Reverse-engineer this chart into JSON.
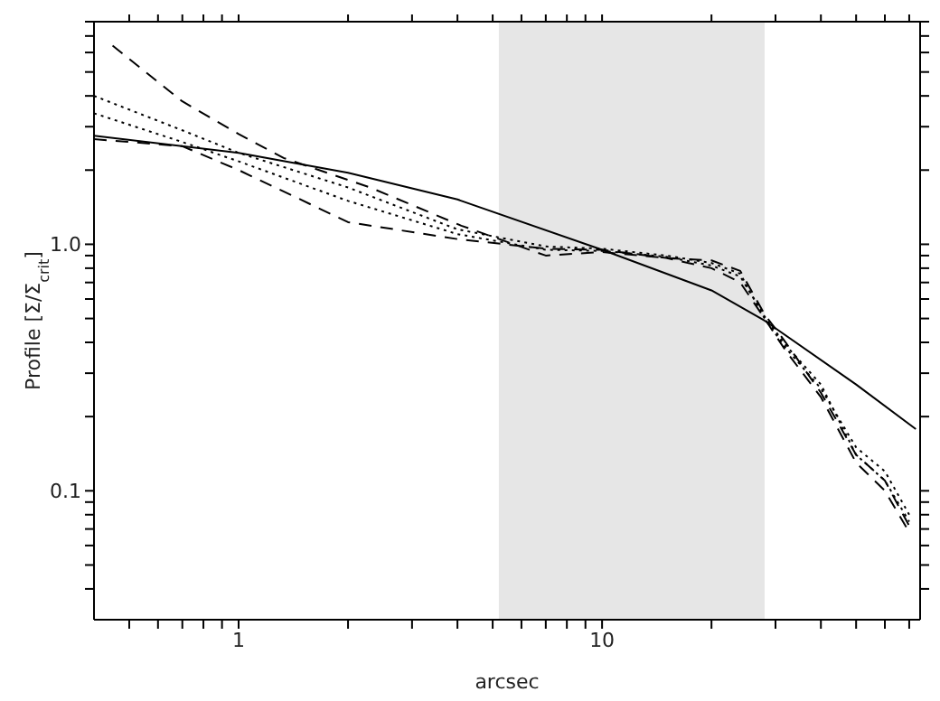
{
  "chart_data": {
    "type": "line",
    "xlabel": "arcsec",
    "ylabel": "Profile [Σ/Σ$_{crit}$]",
    "log": "xy",
    "marker": "none",
    "xlim": [
      0.4,
      75
    ],
    "ylim": [
      0.03,
      8
    ],
    "xticks": [
      {
        "value": 0.5,
        "label": null
      },
      {
        "value": 0.6,
        "label": null
      },
      {
        "value": 0.7,
        "label": null
      },
      {
        "value": 0.8,
        "label": null
      },
      {
        "value": 0.9,
        "label": null
      },
      1,
      {
        "value": 2,
        "label": null
      },
      {
        "value": 3,
        "label": null
      },
      {
        "value": 4,
        "label": null
      },
      {
        "value": 5,
        "label": null
      },
      {
        "value": 6,
        "label": null
      },
      {
        "value": 7,
        "label": null
      },
      {
        "value": 8,
        "label": null
      },
      {
        "value": 9,
        "label": null
      },
      10,
      {
        "value": 20,
        "label": null
      },
      {
        "value": 30,
        "label": null
      },
      {
        "value": 40,
        "label": null
      },
      {
        "value": 50,
        "label": null
      },
      {
        "value": 60,
        "label": null
      },
      {
        "value": 70,
        "label": null
      }
    ],
    "yticks": [
      {
        "value": 0.04,
        "label": null
      },
      {
        "value": 0.05,
        "label": null
      },
      {
        "value": 0.06,
        "label": null
      },
      {
        "value": 0.07,
        "label": null
      },
      {
        "value": 0.08,
        "label": null
      },
      {
        "value": 0.09,
        "label": null
      },
      0.1,
      {
        "value": 0.2,
        "label": null
      },
      {
        "value": 0.3,
        "label": null
      },
      {
        "value": 0.4,
        "label": null
      },
      {
        "value": 0.5,
        "label": null
      },
      {
        "value": 0.6,
        "label": null
      },
      {
        "value": 0.7,
        "label": null
      },
      {
        "value": 0.8,
        "label": null
      },
      {
        "value": 0.9,
        "label": null
      },
      {
        "value": 1,
        "label": "1.0"
      },
      {
        "value": 2,
        "label": null
      },
      {
        "value": 3,
        "label": null
      },
      {
        "value": 4,
        "label": null
      },
      {
        "value": 5,
        "label": null
      },
      {
        "value": 6,
        "label": null
      },
      {
        "value": 7,
        "label": null
      },
      {
        "value": 8,
        "label": null
      }
    ],
    "bands": [
      {
        "axis": "x",
        "from": 5.2,
        "to": 28,
        "color": "#e6e6e6"
      }
    ],
    "series": [
      {
        "color": "#000000",
        "line_style": "solid",
        "x": [
          0.4,
          1,
          2,
          4,
          10,
          20,
          28,
          50,
          73
        ],
        "values": [
          2.76,
          2.35,
          1.95,
          1.52,
          0.95,
          0.65,
          0.49,
          0.27,
          0.178
        ]
      },
      {
        "color": "#000000",
        "line_style": "dashed",
        "x": [
          0.45,
          0.7,
          1,
          1.33,
          2.3,
          4.1,
          7,
          10,
          15,
          20,
          24,
          28,
          32,
          40,
          50,
          60,
          70
        ],
        "values": [
          6.4,
          3.8,
          2.8,
          2.24,
          1.7,
          1.19,
          0.9,
          0.93,
          0.88,
          0.86,
          0.78,
          0.52,
          0.4,
          0.25,
          0.14,
          0.11,
          0.072
        ]
      },
      {
        "color": "#000000",
        "line_style": "dotted",
        "x": [
          0.4,
          0.7,
          1,
          2,
          4,
          7,
          10,
          15,
          20,
          24,
          28,
          32,
          40,
          50,
          60,
          70
        ],
        "values": [
          4.0,
          2.9,
          2.35,
          1.7,
          1.15,
          0.98,
          0.96,
          0.9,
          0.84,
          0.76,
          0.5,
          0.38,
          0.26,
          0.15,
          0.12,
          0.08
        ]
      },
      {
        "color": "#000000",
        "line_style": "dotted",
        "x": [
          0.4,
          0.7,
          1,
          2,
          4,
          7,
          10,
          15,
          20,
          24,
          28,
          32,
          40,
          50,
          60,
          70
        ],
        "values": [
          3.4,
          2.6,
          2.17,
          1.5,
          1.1,
          0.95,
          0.94,
          0.89,
          0.82,
          0.74,
          0.51,
          0.39,
          0.27,
          0.14,
          0.11,
          0.075
        ]
      },
      {
        "color": "#000000",
        "line_style": "dashed",
        "x": [
          0.4,
          0.7,
          1,
          2,
          4,
          7,
          10,
          15,
          20,
          24,
          28,
          32,
          40,
          50,
          60,
          70
        ],
        "values": [
          2.67,
          2.5,
          2.0,
          1.23,
          1.05,
          0.96,
          0.95,
          0.88,
          0.8,
          0.7,
          0.5,
          0.37,
          0.24,
          0.13,
          0.1,
          0.068
        ]
      }
    ]
  }
}
